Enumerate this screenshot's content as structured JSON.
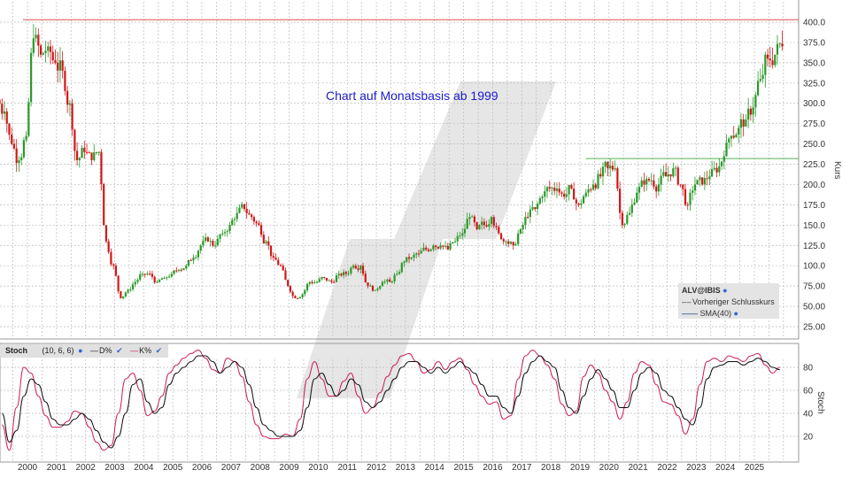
{
  "chart_data": [
    {
      "type": "candlestick",
      "title": "Chart auf Monatsbasis ab 1999",
      "symbol": "ALV@IBIS",
      "ylabel": "Kurs",
      "ylim": [
        25,
        400
      ],
      "yticks": [
        "400.0",
        "375.0",
        "350.0",
        "325.0",
        "300.0",
        "275.0",
        "250.0",
        "225.0",
        "200.0",
        "175.0",
        "150.0",
        "125.0",
        "100.0",
        "75.00",
        "50.00",
        "25.00"
      ],
      "xticks": [
        "2000",
        "2001",
        "2002",
        "2003",
        "2004",
        "2005",
        "2006",
        "2007",
        "2008",
        "2009",
        "2010",
        "2011",
        "2012",
        "2013",
        "2014",
        "2015",
        "2016",
        "2017",
        "2018",
        "2019",
        "2020",
        "2021",
        "2022",
        "2023",
        "2024",
        "2025"
      ],
      "start_year": 1999,
      "period": "quarterly closes (approx.)",
      "closes": [
        290,
        250,
        230,
        260,
        380,
        360,
        370,
        350,
        340,
        300,
        230,
        240,
        230,
        240,
        130,
        100,
        60,
        70,
        80,
        90,
        90,
        80,
        85,
        90,
        95,
        100,
        110,
        125,
        130,
        125,
        140,
        150,
        165,
        170,
        160,
        150,
        130,
        110,
        100,
        75,
        60,
        65,
        80,
        80,
        85,
        80,
        90,
        90,
        100,
        100,
        75,
        70,
        80,
        80,
        90,
        105,
        110,
        115,
        120,
        125,
        125,
        120,
        130,
        140,
        160,
        145,
        150,
        160,
        140,
        130,
        125,
        145,
        160,
        170,
        185,
        195,
        195,
        185,
        195,
        175,
        190,
        200,
        210,
        220,
        220,
        150,
        165,
        190,
        200,
        205,
        200,
        210,
        220,
        200,
        175,
        200,
        200,
        210,
        215,
        235,
        260,
        270,
        280,
        295,
        330,
        355,
        360,
        370
      ],
      "hlines": [
        {
          "value": 403,
          "color": "#e05050"
        },
        {
          "value": 232,
          "color": "#50b050",
          "from_year": 2019.2
        }
      ],
      "legend": {
        "title": "ALV@IBIS",
        "items": [
          "Vorheriger Schlusskurs",
          "SMA(40)"
        ]
      },
      "colors": {
        "up": "#2a9a2a",
        "down": "#d01818"
      }
    },
    {
      "type": "line",
      "title": "Stoch",
      "params": "(10, 6, 6)",
      "ylabel": "Stoch",
      "ylim": [
        0,
        100
      ],
      "yticks": [
        "80",
        "60",
        "40",
        "20"
      ],
      "series": [
        {
          "name": "D%",
          "color": "#111111",
          "values": [
            40,
            15,
            25,
            55,
            70,
            65,
            50,
            35,
            30,
            30,
            35,
            40,
            35,
            25,
            15,
            10,
            20,
            40,
            65,
            70,
            50,
            40,
            45,
            65,
            75,
            80,
            85,
            90,
            90,
            85,
            75,
            80,
            85,
            80,
            65,
            45,
            30,
            25,
            20,
            20,
            20,
            25,
            45,
            70,
            75,
            65,
            55,
            60,
            70,
            65,
            50,
            45,
            50,
            60,
            70,
            80,
            85,
            85,
            80,
            75,
            80,
            75,
            80,
            85,
            80,
            75,
            65,
            55,
            55,
            45,
            40,
            55,
            75,
            85,
            90,
            85,
            80,
            60,
            45,
            40,
            55,
            70,
            78,
            70,
            60,
            45,
            45,
            60,
            75,
            80,
            75,
            60,
            55,
            45,
            35,
            30,
            45,
            70,
            80,
            82,
            85,
            85,
            82,
            85,
            88,
            85,
            80,
            78
          ]
        },
        {
          "name": "K%",
          "color": "#cc2255",
          "values": [
            30,
            8,
            45,
            80,
            75,
            55,
            38,
            28,
            28,
            33,
            42,
            40,
            28,
            15,
            8,
            12,
            40,
            70,
            75,
            60,
            38,
            42,
            55,
            75,
            82,
            88,
            92,
            95,
            88,
            78,
            75,
            88,
            85,
            72,
            50,
            30,
            20,
            18,
            18,
            22,
            20,
            35,
            70,
            85,
            70,
            55,
            55,
            68,
            75,
            55,
            40,
            45,
            58,
            72,
            82,
            90,
            92,
            85,
            75,
            78,
            85,
            78,
            85,
            88,
            78,
            65,
            55,
            48,
            50,
            35,
            38,
            70,
            90,
            95,
            90,
            82,
            70,
            48,
            38,
            42,
            72,
            82,
            75,
            60,
            50,
            35,
            50,
            75,
            85,
            82,
            65,
            50,
            48,
            38,
            22,
            35,
            65,
            85,
            88,
            85,
            90,
            88,
            85,
            90,
            92,
            82,
            75,
            80
          ]
        }
      ]
    }
  ],
  "legend_icons": [
    "globe-icon",
    "checkbox-icon"
  ]
}
